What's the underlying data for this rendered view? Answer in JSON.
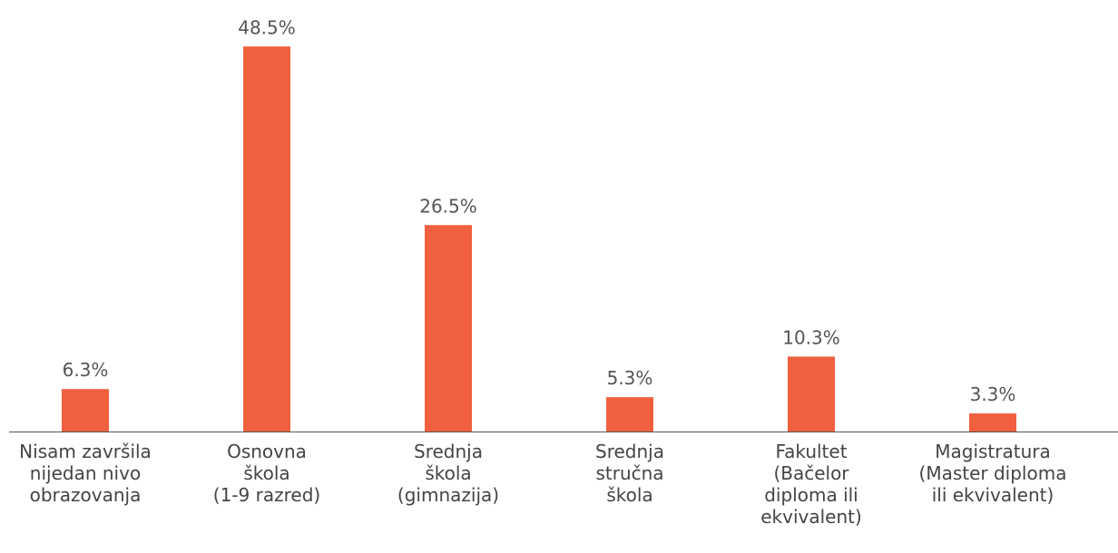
{
  "chart_data": {
    "type": "bar",
    "categories": [
      "Nisam završila\nnijedan nivo\nobrazovanja",
      "Osnovna\nškola\n(1-9 razred)",
      "Srednja\nškola\n(gimnazija)",
      "Srednja\nstručna\nškola",
      "Fakultet\n(Bačelor\ndiploma ili\nekvivalent)",
      "Magistratura\n(Master diploma\nili ekvivalent)"
    ],
    "values": [
      6.3,
      48.5,
      26.5,
      5.3,
      10.3,
      3.3
    ],
    "value_labels": [
      "6.3%",
      "48.5%",
      "26.5%",
      "5.3%",
      "10.3%",
      "3.3%"
    ],
    "color": "#f0603f",
    "ylim": [
      1.07,
      54
    ]
  }
}
